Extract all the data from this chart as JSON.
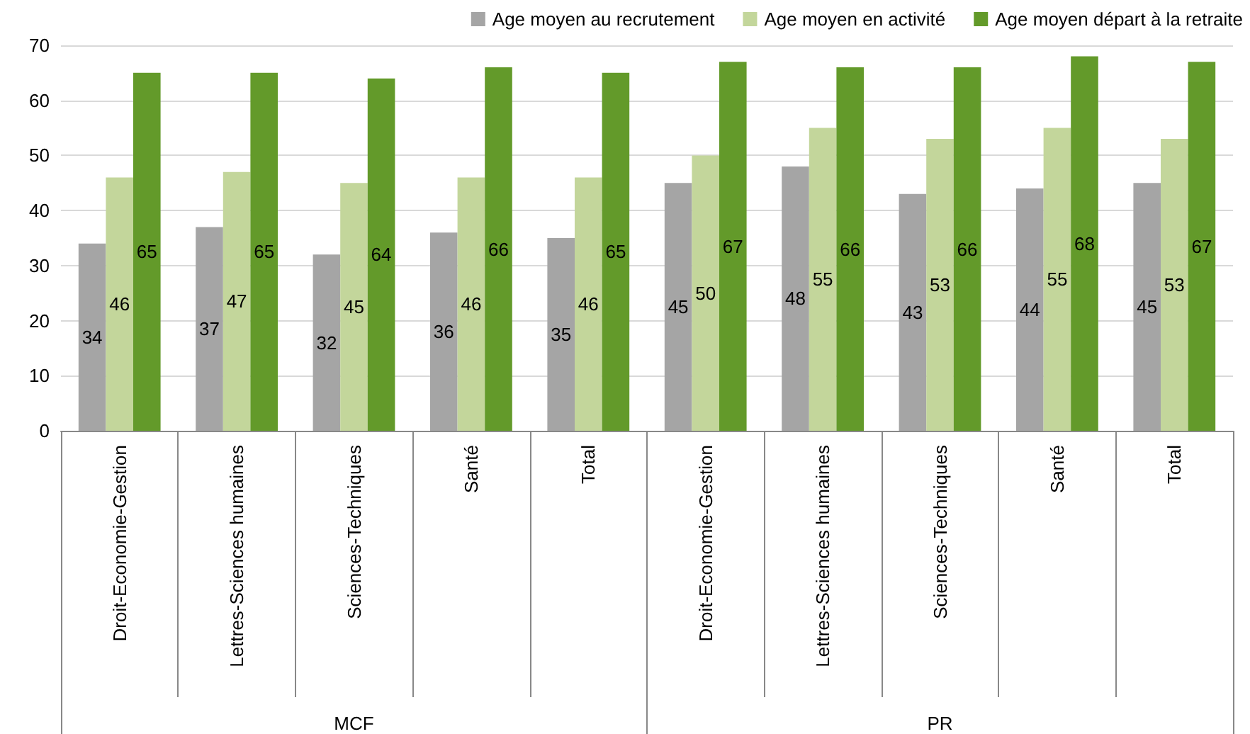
{
  "chart_data": {
    "type": "bar",
    "categories": [
      "Droit-Economie-Gestion",
      "Lettres-Sciences humaines",
      "Sciences-Techniques",
      "Santé",
      "Total",
      "Droit-Economie-Gestion",
      "Lettres-Sciences humaines",
      "Sciences-Techniques",
      "Santé",
      "Total"
    ],
    "series": [
      {
        "name": "Age moyen au recrutement",
        "color": "#a5a5a5",
        "values": [
          34,
          37,
          32,
          36,
          35,
          45,
          48,
          43,
          44,
          45
        ]
      },
      {
        "name": "Age moyen en activité",
        "color": "#c3d69b",
        "values": [
          46,
          47,
          45,
          46,
          46,
          50,
          55,
          53,
          55,
          53
        ]
      },
      {
        "name": "Age moyen départ à la retraite",
        "color": "#639a2a",
        "values": [
          65,
          65,
          64,
          66,
          65,
          67,
          66,
          66,
          68,
          67
        ]
      }
    ],
    "annotations": [
      "MCF",
      "PR"
    ],
    "ylim": [
      0,
      70
    ],
    "yticks": [
      0,
      10,
      20,
      30,
      40,
      50,
      60,
      70
    ],
    "grid": "y",
    "legend": "top right",
    "data_labels": true
  }
}
